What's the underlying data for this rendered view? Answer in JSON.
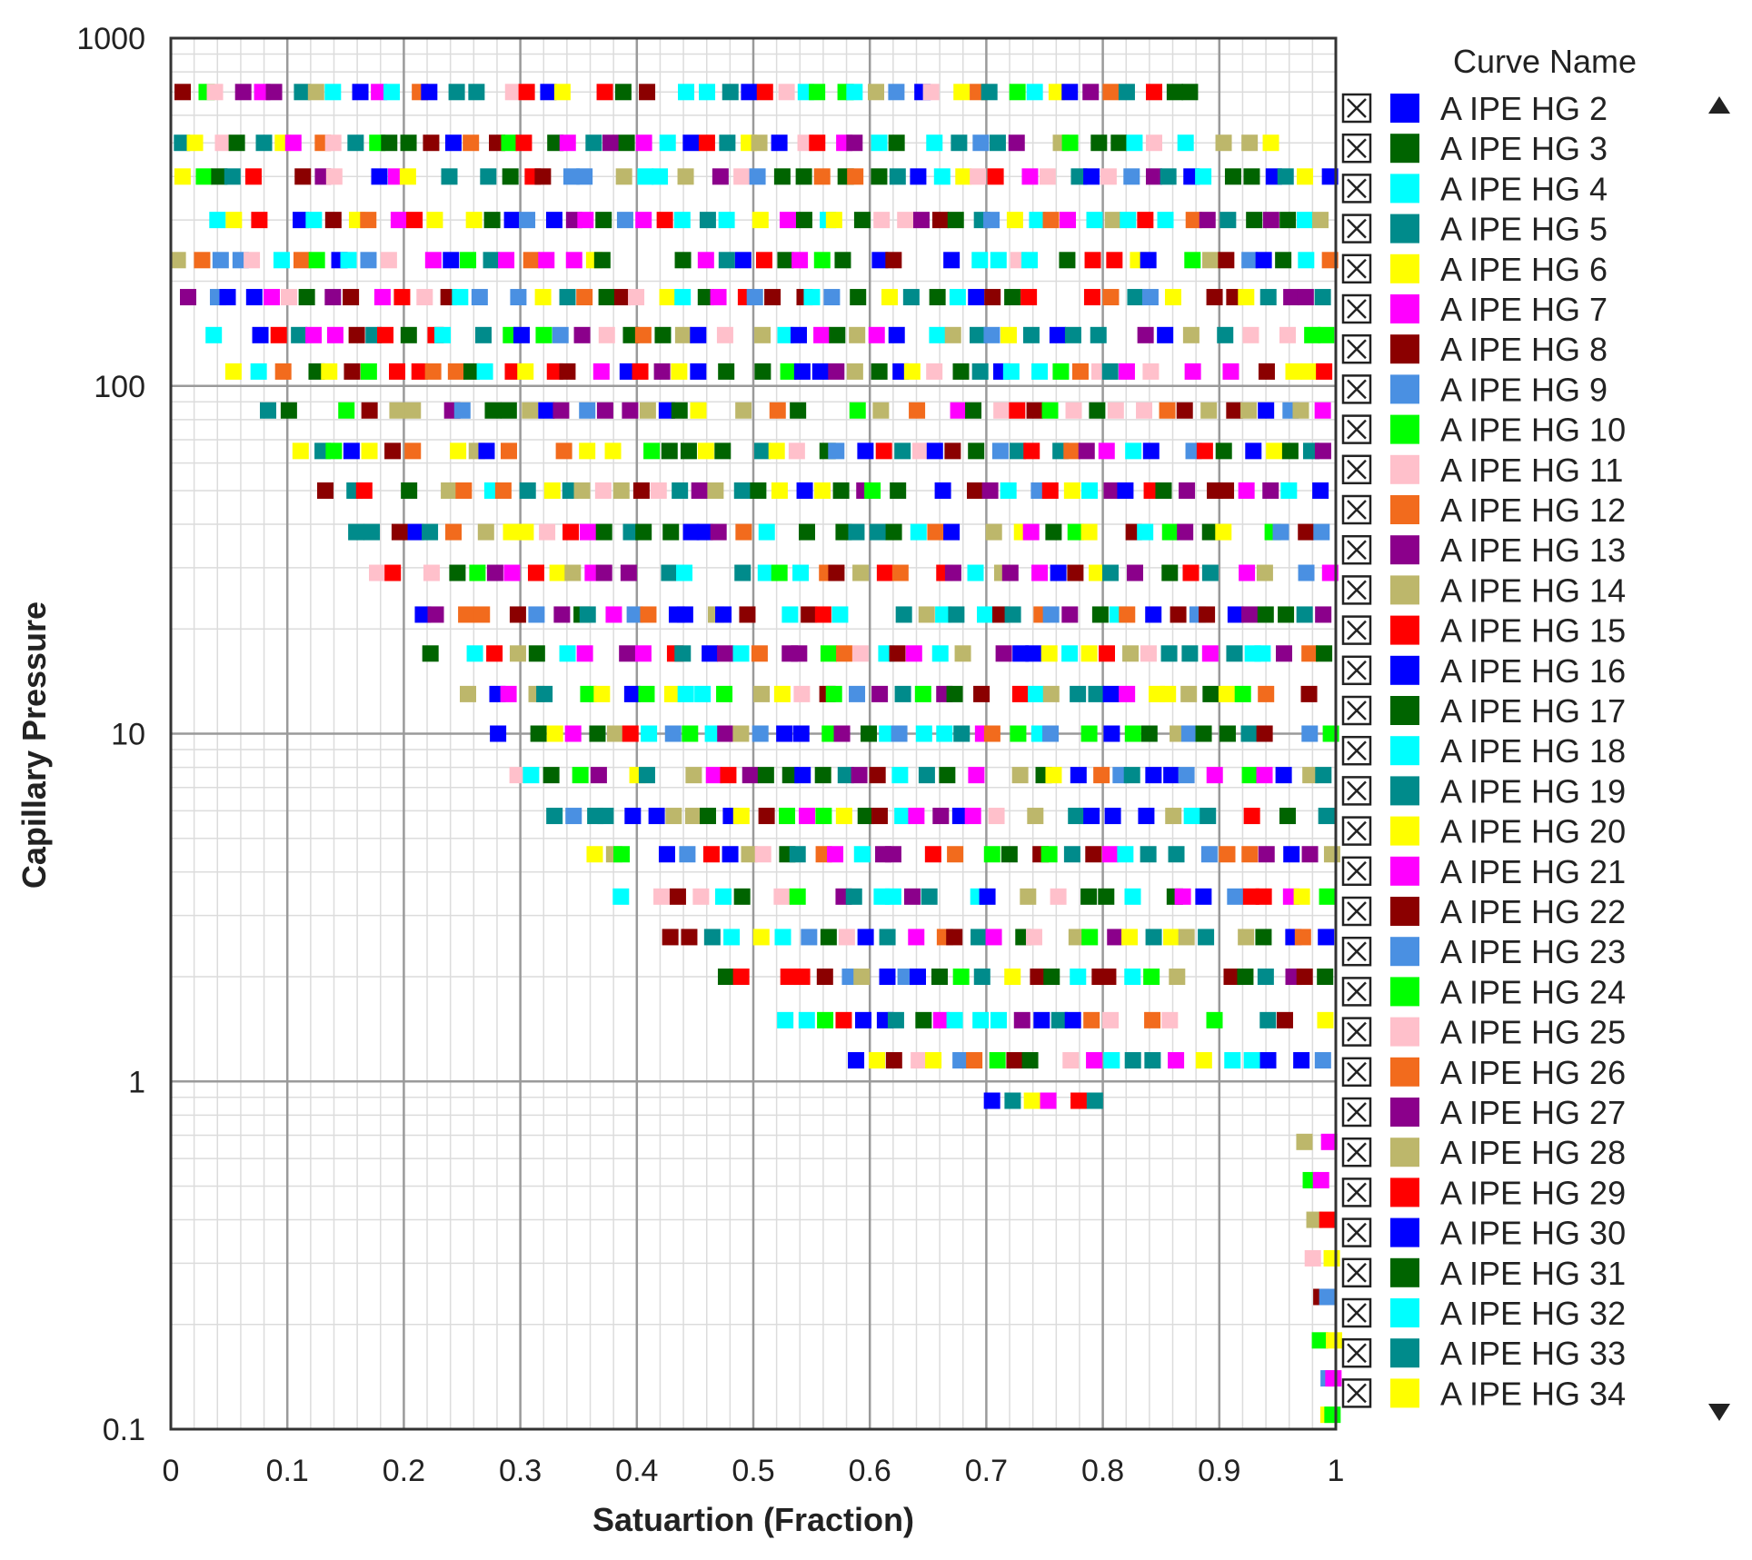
{
  "chart_data": {
    "type": "scatter",
    "title": "",
    "xlabel": "Satuartion (Fraction)",
    "ylabel": "Capillary Pressure",
    "xlim": [
      0,
      1
    ],
    "ylim": [
      0.1,
      1000
    ],
    "yscale": "log",
    "grid": true,
    "legend_position": "right",
    "x_ticks": [
      "0",
      "0.1",
      "0.2",
      "0.3",
      "0.4",
      "0.5",
      "0.6",
      "0.7",
      "0.8",
      "0.9",
      "1"
    ],
    "y_ticks": [
      "0.1",
      "1",
      "10",
      "100",
      "1000"
    ],
    "legend_title": "Curve Name",
    "scroll_up_icon": "triangle-up-icon",
    "scroll_down_icon": "triangle-down-icon",
    "series": [
      {
        "name": "A  IPE  HG  2",
        "color": "#0000ff"
      },
      {
        "name": "A  IPE  HG  3",
        "color": "#006400"
      },
      {
        "name": "A  IPE  HG  4",
        "color": "#00ffff"
      },
      {
        "name": "A  IPE  HG  5",
        "color": "#008b8b"
      },
      {
        "name": "A  IPE  HG  6",
        "color": "#ffff00"
      },
      {
        "name": "A  IPE  HG  7",
        "color": "#ff00ff"
      },
      {
        "name": "A  IPE  HG  8",
        "color": "#8b0000"
      },
      {
        "name": "A  IPE  HG  9",
        "color": "#4a90e2"
      },
      {
        "name": "A  IPE  HG  10",
        "color": "#00ff00"
      },
      {
        "name": "A  IPE  HG  11",
        "color": "#ffc0cb"
      },
      {
        "name": "A  IPE  HG  12",
        "color": "#f26b1d"
      },
      {
        "name": "A  IPE  HG  13",
        "color": "#8b008b"
      },
      {
        "name": "A  IPE  HG  14",
        "color": "#bdb76b"
      },
      {
        "name": "A  IPE  HG  15",
        "color": "#ff0000"
      },
      {
        "name": "A  IPE  HG  16",
        "color": "#0000ff"
      },
      {
        "name": "A  IPE  HG  17",
        "color": "#006400"
      },
      {
        "name": "A  IPE  HG  18",
        "color": "#00ffff"
      },
      {
        "name": "A  IPE  HG  19",
        "color": "#008b8b"
      },
      {
        "name": "A  IPE  HG  20",
        "color": "#ffff00"
      },
      {
        "name": "A  IPE  HG  21",
        "color": "#ff00ff"
      },
      {
        "name": "A  IPE  HG  22",
        "color": "#8b0000"
      },
      {
        "name": "A  IPE  HG  23",
        "color": "#4a90e2"
      },
      {
        "name": "A  IPE  HG  24",
        "color": "#00ff00"
      },
      {
        "name": "A  IPE  HG  25",
        "color": "#ffc0cb"
      },
      {
        "name": "A  IPE  HG  26",
        "color": "#f26b1d"
      },
      {
        "name": "A  IPE  HG  27",
        "color": "#8b008b"
      },
      {
        "name": "A  IPE  HG  28",
        "color": "#bdb76b"
      },
      {
        "name": "A  IPE  HG  29",
        "color": "#ff0000"
      },
      {
        "name": "A  IPE  HG  30",
        "color": "#0000ff"
      },
      {
        "name": "A  IPE  HG  31",
        "color": "#006400"
      },
      {
        "name": "A  IPE  HG  32",
        "color": "#00ffff"
      },
      {
        "name": "A  IPE  HG  33",
        "color": "#008b8b"
      },
      {
        "name": "A  IPE  HG  34",
        "color": "#ffff00"
      }
    ],
    "pressure_levels": [
      700,
      500,
      400,
      300,
      230,
      180,
      140,
      110,
      85,
      65,
      50,
      38,
      29,
      22,
      17,
      13,
      10,
      7.6,
      5.8,
      4.5,
      3.4,
      2.6,
      2.0,
      1.5,
      1.15,
      0.88,
      0.67,
      0.52,
      0.4,
      0.31,
      0.24,
      0.18,
      0.14,
      0.11
    ],
    "level_min_saturation": [
      0.0,
      0.0,
      0.0,
      0.0,
      0.0,
      0.01,
      0.03,
      0.05,
      0.08,
      0.1,
      0.13,
      0.15,
      0.17,
      0.19,
      0.22,
      0.25,
      0.27,
      0.29,
      0.32,
      0.35,
      0.38,
      0.42,
      0.47,
      0.52,
      0.58,
      0.7,
      0.96,
      0.97,
      0.975,
      0.978,
      0.98,
      0.985,
      0.99,
      0.993
    ],
    "level_max_saturation": [
      0.9,
      0.95,
      1.0,
      1.0,
      1.0,
      1.0,
      1.0,
      1.0,
      1.0,
      1.0,
      1.0,
      1.0,
      1.0,
      1.0,
      1.0,
      1.0,
      1.0,
      1.0,
      1.0,
      1.0,
      1.0,
      1.0,
      1.0,
      1.0,
      1.0,
      0.8,
      1.0,
      1.0,
      1.0,
      1.0,
      1.0,
      1.0,
      1.0,
      1.0
    ]
  }
}
